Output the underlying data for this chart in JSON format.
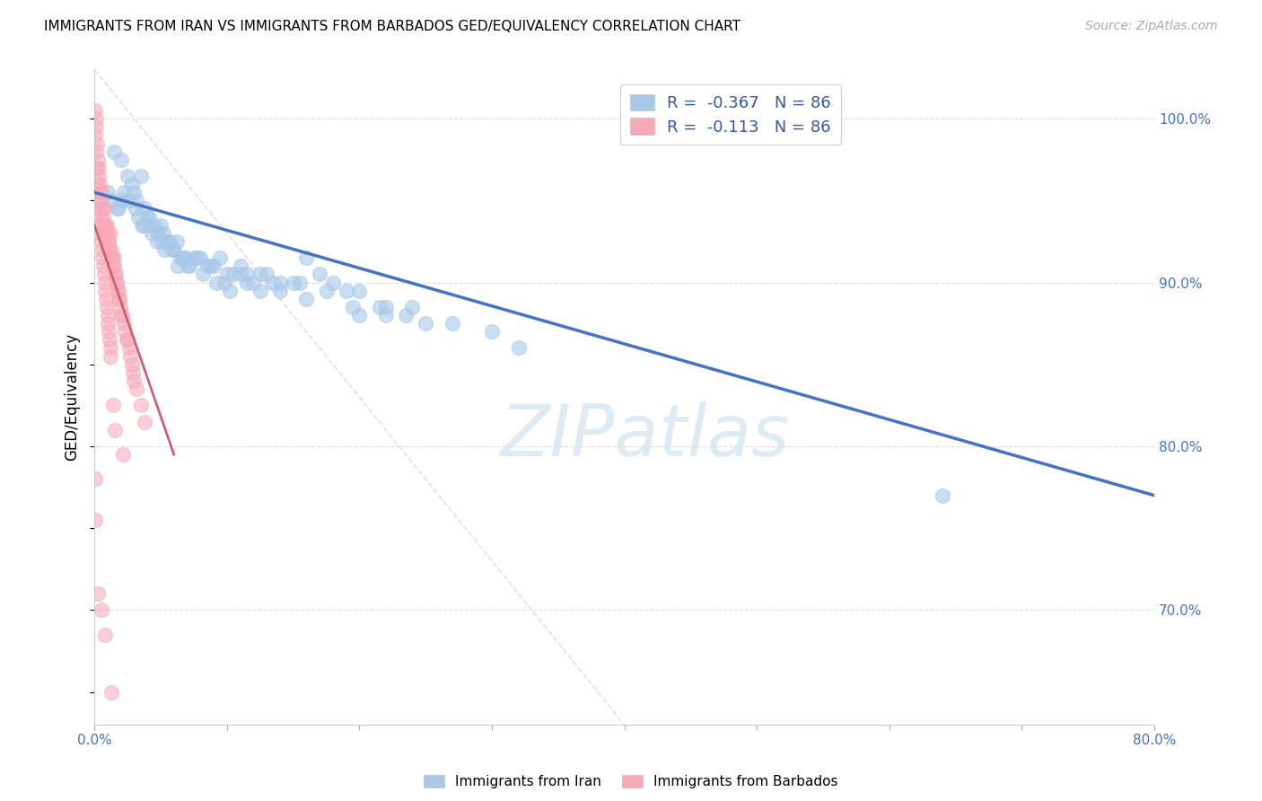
{
  "title": "IMMIGRANTS FROM IRAN VS IMMIGRANTS FROM BARBADOS GED/EQUIVALENCY CORRELATION CHART",
  "source": "Source: ZipAtlas.com",
  "ylabel": "GED/Equivalency",
  "iran_color": "#a8c8e8",
  "barbados_color": "#f8a8b8",
  "iran_line_color": "#4472c4",
  "barbados_line_color": "#d06070",
  "diag_line_color": "#d8d8d8",
  "watermark_color": "#d8e8f4",
  "legend1_label": "R =  -0.367   N = 86",
  "legend2_label": "R =  -0.113   N = 86",
  "tick_color": "#4472c4",
  "grid_color": "#dddddd",
  "background_color": "#ffffff",
  "bottom_labels": [
    "Immigrants from Iran",
    "Immigrants from Barbados"
  ],
  "xlim": [
    0.0,
    80.0
  ],
  "ylim": [
    63.0,
    103.0
  ],
  "yticks": [
    70.0,
    80.0,
    90.0,
    100.0
  ],
  "iran_trendline_x": [
    0.0,
    80.0
  ],
  "iran_trendline_y": [
    95.5,
    77.0
  ],
  "barbados_trendline_x": [
    0.0,
    6.0
  ],
  "barbados_trendline_y": [
    93.5,
    79.5
  ],
  "diag_line_x": [
    0.0,
    40.0
  ],
  "diag_line_y": [
    103.0,
    63.0
  ],
  "iran_scatter_x": [
    1.5,
    2.0,
    2.5,
    2.8,
    3.0,
    3.2,
    3.5,
    3.8,
    4.0,
    4.2,
    4.5,
    4.8,
    5.0,
    5.2,
    5.5,
    5.8,
    6.0,
    6.2,
    6.5,
    6.8,
    7.0,
    7.5,
    8.0,
    8.5,
    9.0,
    9.5,
    10.0,
    10.5,
    11.0,
    11.5,
    12.0,
    12.5,
    13.0,
    14.0,
    15.0,
    16.0,
    17.0,
    18.0,
    19.0,
    20.0,
    22.0,
    24.0,
    2.2,
    2.6,
    3.1,
    3.6,
    4.1,
    4.7,
    5.3,
    6.3,
    7.2,
    8.2,
    9.2,
    10.2,
    11.5,
    13.5,
    15.5,
    17.5,
    19.5,
    21.5,
    23.5,
    25.0,
    27.0,
    30.0,
    1.8,
    3.3,
    5.7,
    7.8,
    9.8,
    12.5,
    16.0,
    20.0,
    1.0,
    2.1,
    3.7,
    4.3,
    5.1,
    6.7,
    8.8,
    11.0,
    14.0,
    22.0,
    64.0,
    32.0,
    1.3,
    1.7
  ],
  "iran_scatter_y": [
    98.0,
    97.5,
    96.5,
    96.0,
    95.5,
    95.0,
    96.5,
    94.5,
    94.0,
    93.5,
    93.5,
    93.0,
    93.5,
    93.0,
    92.5,
    92.0,
    92.0,
    92.5,
    91.5,
    91.5,
    91.0,
    91.5,
    91.5,
    91.0,
    91.0,
    91.5,
    90.5,
    90.5,
    91.0,
    90.5,
    90.0,
    90.5,
    90.5,
    90.0,
    90.0,
    91.5,
    90.5,
    90.0,
    89.5,
    89.5,
    88.5,
    88.5,
    95.5,
    95.0,
    94.5,
    93.5,
    94.0,
    92.5,
    92.0,
    91.0,
    91.0,
    90.5,
    90.0,
    89.5,
    90.0,
    90.0,
    90.0,
    89.5,
    88.5,
    88.5,
    88.0,
    87.5,
    87.5,
    87.0,
    94.5,
    94.0,
    92.5,
    91.5,
    90.0,
    89.5,
    89.0,
    88.0,
    95.5,
    95.0,
    93.5,
    93.0,
    92.5,
    91.5,
    91.0,
    90.5,
    89.5,
    88.0,
    77.0,
    86.0,
    95.0,
    94.5
  ],
  "barbados_scatter_x": [
    0.05,
    0.1,
    0.15,
    0.2,
    0.25,
    0.3,
    0.35,
    0.4,
    0.45,
    0.5,
    0.55,
    0.6,
    0.65,
    0.7,
    0.75,
    0.8,
    0.85,
    0.9,
    0.95,
    1.0,
    1.05,
    1.1,
    1.15,
    1.2,
    1.25,
    1.3,
    1.35,
    1.4,
    1.45,
    1.5,
    1.55,
    1.6,
    1.65,
    1.7,
    1.75,
    1.8,
    1.85,
    1.9,
    1.95,
    2.0,
    2.1,
    2.2,
    2.3,
    2.4,
    2.5,
    2.6,
    2.7,
    2.8,
    2.9,
    3.0,
    3.2,
    3.5,
    0.08,
    0.12,
    0.18,
    0.22,
    0.28,
    0.32,
    0.38,
    0.42,
    0.48,
    0.52,
    0.58,
    0.62,
    0.68,
    0.72,
    0.78,
    0.82,
    0.88,
    0.92,
    0.98,
    1.02,
    1.08,
    1.12,
    1.18,
    1.22,
    0.03,
    0.06,
    1.4,
    1.55,
    2.15,
    3.8,
    0.25,
    0.5,
    0.8,
    1.3
  ],
  "barbados_scatter_y": [
    100.5,
    99.5,
    100.0,
    98.5,
    97.5,
    97.0,
    96.5,
    96.0,
    95.5,
    95.0,
    95.5,
    94.5,
    94.0,
    94.5,
    93.5,
    93.5,
    93.0,
    93.0,
    93.5,
    93.0,
    92.5,
    92.5,
    92.0,
    93.0,
    92.0,
    91.5,
    91.5,
    91.0,
    91.5,
    91.0,
    90.5,
    90.5,
    90.0,
    90.0,
    89.5,
    89.5,
    89.0,
    89.0,
    88.5,
    88.0,
    88.0,
    87.5,
    87.0,
    86.5,
    86.5,
    86.0,
    85.5,
    85.0,
    84.5,
    84.0,
    83.5,
    82.5,
    99.0,
    98.0,
    97.0,
    96.0,
    95.0,
    94.5,
    94.0,
    93.5,
    93.0,
    92.5,
    92.0,
    91.5,
    91.0,
    90.5,
    90.0,
    89.5,
    89.0,
    88.5,
    88.0,
    87.5,
    87.0,
    86.5,
    86.0,
    85.5,
    78.0,
    75.5,
    82.5,
    81.0,
    79.5,
    81.5,
    71.0,
    70.0,
    68.5,
    65.0
  ]
}
